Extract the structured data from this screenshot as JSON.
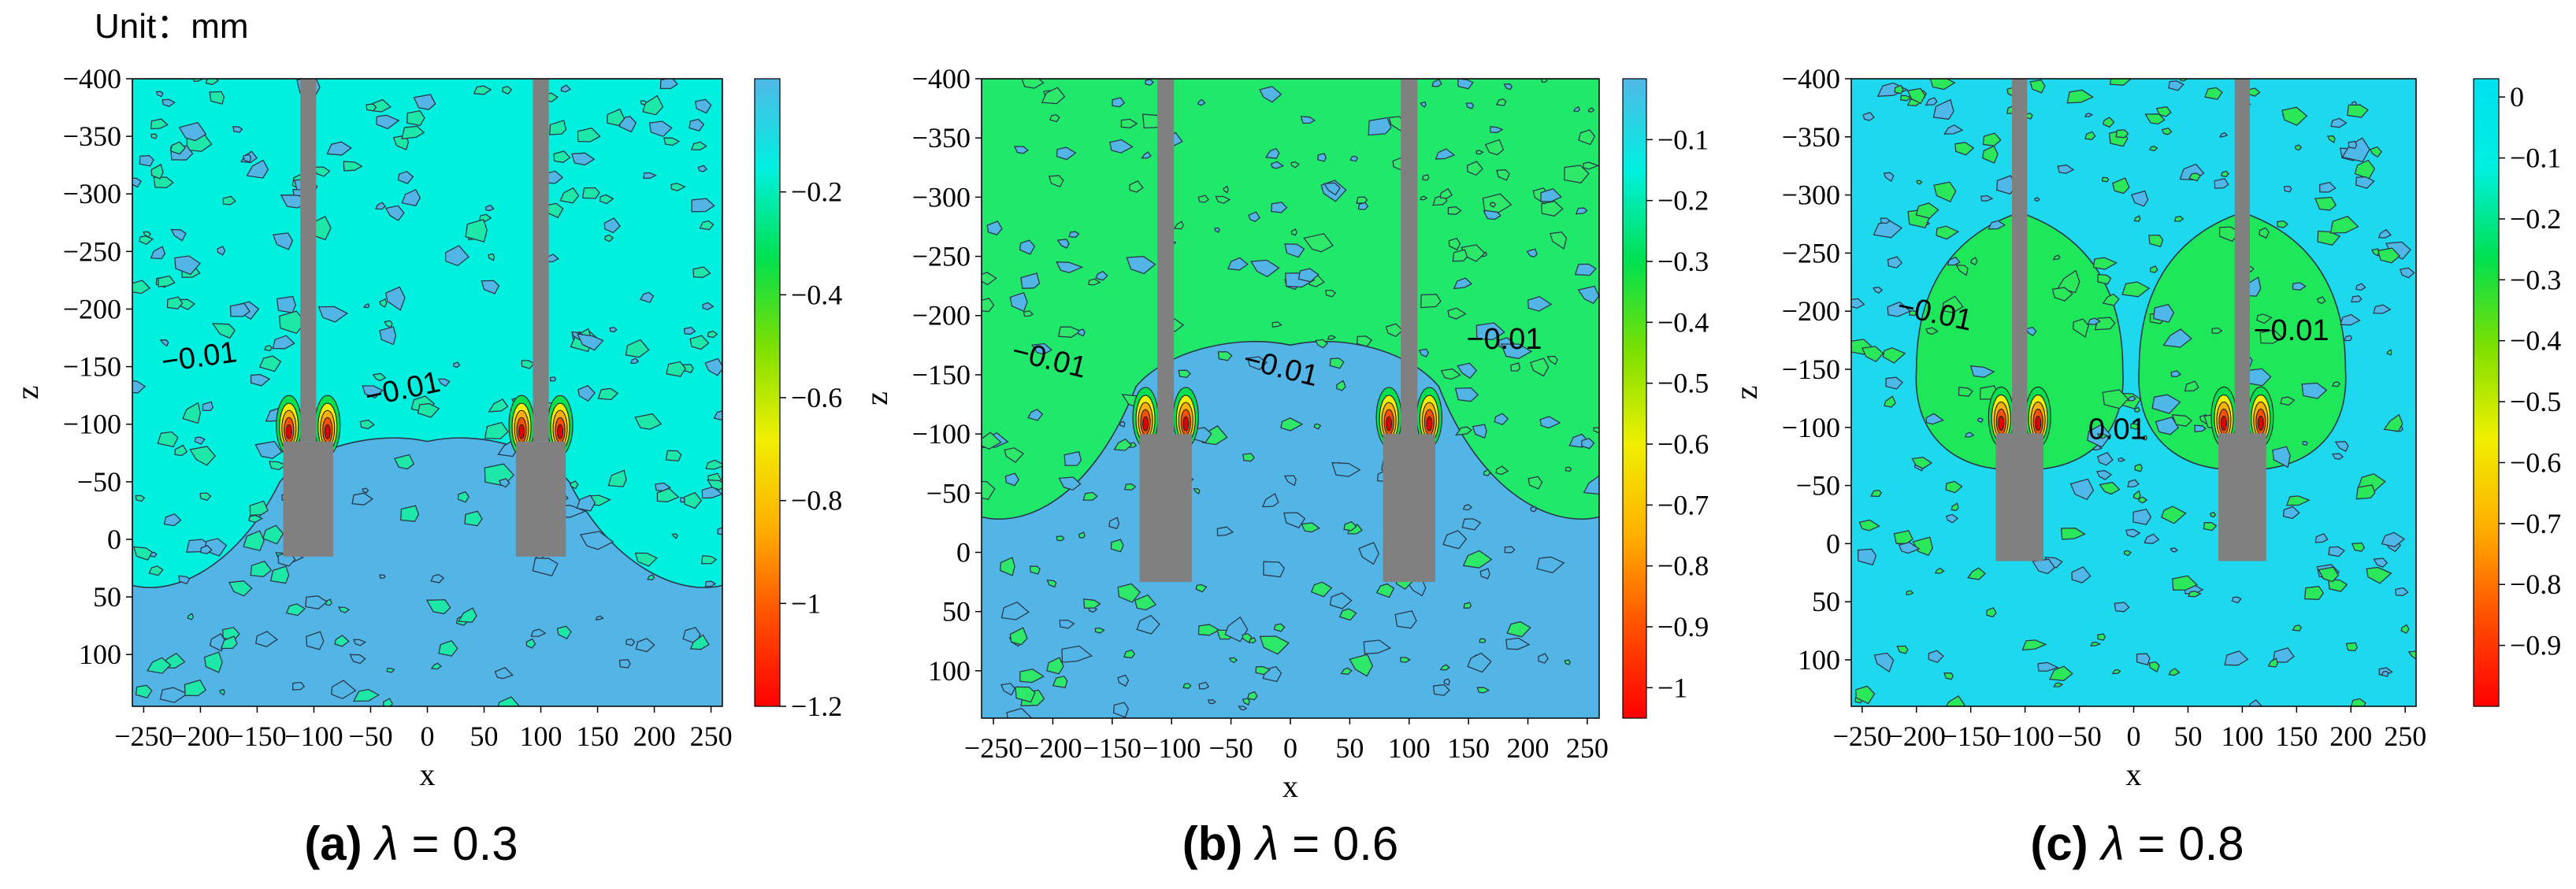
{
  "unit_label": "Unit：mm",
  "colors": {
    "bg_main": "#53b4e6",
    "pile": "#808080",
    "contour_line": "#1e2a3a"
  },
  "chart_data": [
    {
      "type": "heatmap",
      "panel_letter": "(a)",
      "panel_symbol": "λ",
      "panel_value": "= 0.3",
      "xlabel": "x",
      "ylabel": "z",
      "xlim": [
        -260,
        260
      ],
      "ylim": [
        -400,
        145
      ],
      "xticks": [
        -250,
        -200,
        -150,
        -100,
        -50,
        0,
        50,
        100,
        150,
        200,
        250
      ],
      "xtick_labels": [
        "−250",
        "−200",
        "−150",
        "−100",
        "−50",
        "0",
        "50",
        "100",
        "150",
        "200",
        "250"
      ],
      "yticks": [
        -400,
        -350,
        -300,
        -250,
        -200,
        -150,
        -100,
        -50,
        0,
        50,
        100
      ],
      "ytick_labels": [
        "−400",
        "−350",
        "−300",
        "−250",
        "−200",
        "−150",
        "−100",
        "−50",
        "0",
        "50",
        "100"
      ],
      "colorbar": {
        "min": -1.2,
        "max": 0.02,
        "stops": [
          "#ff0000",
          "#ff5000",
          "#ffb000",
          "#f0f000",
          "#7ee000",
          "#00e050",
          "#00f0e0",
          "#50b8e8"
        ],
        "ticks": [
          -0.2,
          -0.4,
          -0.6,
          -0.8,
          -1,
          -1.2
        ],
        "tick_labels": [
          "−0.2",
          "−0.4",
          "−0.6",
          "−0.8",
          "−1",
          "−1.2"
        ]
      },
      "field": {
        "base": "#53b4e6",
        "upper": "#00f0e0",
        "boundary_z": 40,
        "dip_depth": 110
      },
      "piles": [
        {
          "x": -105,
          "shaft_half_width": 7,
          "head_half_width": 22,
          "shaft_top": -400,
          "head_top": -85,
          "bottom": 15
        },
        {
          "x": 100,
          "shaft_half_width": 7,
          "head_half_width": 22,
          "shaft_top": -400,
          "head_top": -85,
          "bottom": 15
        }
      ],
      "contour_labels": [
        {
          "text": "−0.01",
          "x": -200,
          "z": -150,
          "angle": -8
        },
        {
          "text": "−0.01",
          "x": -20,
          "z": -122,
          "angle": -12
        }
      ]
    },
    {
      "type": "heatmap",
      "panel_letter": "(b)",
      "panel_symbol": "λ",
      "panel_value": "= 0.6",
      "xlabel": "x",
      "ylabel": "z",
      "xlim": [
        -260,
        260
      ],
      "ylim": [
        -400,
        140
      ],
      "xticks": [
        -250,
        -200,
        -150,
        -100,
        -50,
        0,
        50,
        100,
        150,
        200,
        250
      ],
      "xtick_labels": [
        "−250",
        "−200",
        "−150",
        "−100",
        "−50",
        "0",
        "50",
        "100",
        "150",
        "200",
        "250"
      ],
      "yticks": [
        -400,
        -350,
        -300,
        -250,
        -200,
        -150,
        -100,
        -50,
        0,
        50,
        100
      ],
      "ytick_labels": [
        "−400",
        "−350",
        "−300",
        "−250",
        "−200",
        "−150",
        "−100",
        "−50",
        "0",
        "50",
        "100"
      ],
      "colorbar": {
        "min": -1.05,
        "max": 0,
        "stops": [
          "#ff0000",
          "#ff5000",
          "#ffb000",
          "#f0f000",
          "#7ee000",
          "#00e050",
          "#00f0e0",
          "#50b8e8"
        ],
        "ticks": [
          -0.1,
          -0.2,
          -0.3,
          -0.4,
          -0.5,
          -0.6,
          -0.7,
          -0.8,
          -0.9,
          -1
        ],
        "tick_labels": [
          "−0.1",
          "−0.2",
          "−0.3",
          "−0.4",
          "−0.5",
          "−0.6",
          "−0.7",
          "−0.8",
          "−0.9",
          "−1"
        ]
      },
      "field": {
        "base": "#53b4e6",
        "upper": "#20e86a",
        "boundary_z": -30,
        "dip_depth": 130
      },
      "piles": [
        {
          "x": -105,
          "shaft_half_width": 7,
          "head_half_width": 22,
          "shaft_top": -400,
          "head_top": -100,
          "bottom": 25
        },
        {
          "x": 100,
          "shaft_half_width": 7,
          "head_half_width": 22,
          "shaft_top": -400,
          "head_top": -100,
          "bottom": 25
        }
      ],
      "contour_labels": [
        {
          "text": "−0.01",
          "x": -205,
          "z": -155,
          "angle": 14
        },
        {
          "text": "−0.01",
          "x": -10,
          "z": -148,
          "angle": 14
        },
        {
          "text": "−0.01",
          "x": 180,
          "z": -172,
          "angle": 0
        }
      ]
    },
    {
      "type": "heatmap",
      "panel_letter": "(c)",
      "panel_symbol": "λ",
      "panel_value": "= 0.8",
      "xlabel": "x",
      "ylabel": "z",
      "xlim": [
        -260,
        260
      ],
      "ylim": [
        -400,
        140
      ],
      "xticks": [
        -250,
        -200,
        -150,
        -100,
        -50,
        0,
        50,
        100,
        150,
        200,
        250
      ],
      "xtick_labels": [
        "−250",
        "−200",
        "−150",
        "−100",
        "−50",
        "0",
        "50",
        "100",
        "150",
        "200",
        "250"
      ],
      "yticks": [
        -400,
        -350,
        -300,
        -250,
        -200,
        -150,
        -100,
        -50,
        0,
        50,
        100
      ],
      "ytick_labels": [
        "−400",
        "−350",
        "−300",
        "−250",
        "−200",
        "−150",
        "−100",
        "−50",
        "0",
        "50",
        "100"
      ],
      "colorbar": {
        "min": -1.0,
        "max": 0.03,
        "stops": [
          "#ff0000",
          "#ff5000",
          "#ffb000",
          "#f0f000",
          "#7ee000",
          "#00e050",
          "#00f0e0",
          "#00e0f0"
        ],
        "ticks": [
          0,
          -0.1,
          -0.2,
          -0.3,
          -0.4,
          -0.5,
          -0.6,
          -0.7,
          -0.8,
          -0.9
        ],
        "tick_labels": [
          "0",
          "−0.1",
          "−0.2",
          "−0.3",
          "−0.4",
          "−0.5",
          "−0.6",
          "−0.7",
          "−0.8",
          "−0.9"
        ]
      },
      "field": {
        "base": "#1ed8ee",
        "upper": "#1ed8ee",
        "boundary_z": 140,
        "dip_depth": 0
      },
      "green_blobs": [
        {
          "x": -105,
          "z": -150,
          "rx": 95,
          "rz": 90
        },
        {
          "x": 100,
          "z": -150,
          "rx": 95,
          "rz": 90
        }
      ],
      "piles": [
        {
          "x": -105,
          "shaft_half_width": 7,
          "head_half_width": 22,
          "shaft_top": -400,
          "head_top": -95,
          "bottom": 15
        },
        {
          "x": 100,
          "shaft_half_width": 7,
          "head_half_width": 22,
          "shaft_top": -400,
          "head_top": -95,
          "bottom": 15
        }
      ],
      "contour_labels": [
        {
          "text": "−0.01",
          "x": -185,
          "z": -190,
          "angle": 12
        },
        {
          "text": "−0.01",
          "x": 145,
          "z": -175,
          "angle": 0
        },
        {
          "text": "0.01",
          "x": -15,
          "z": -90,
          "angle": 0
        }
      ]
    }
  ]
}
